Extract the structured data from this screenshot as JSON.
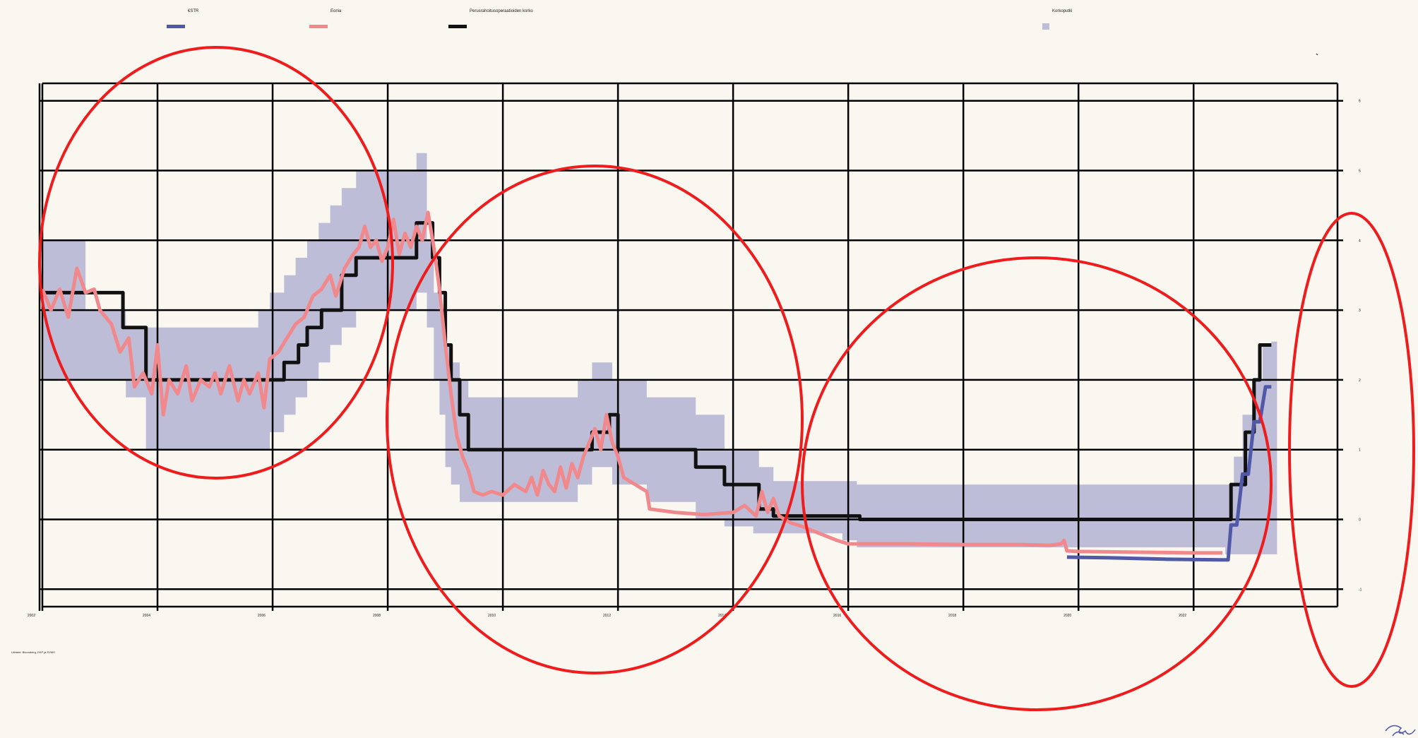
{
  "chart_data": {
    "type": "line",
    "title": "",
    "xlabel": "",
    "ylabel": "",
    "x_ticks": [
      "2002",
      "2004",
      "2006",
      "2008",
      "2010",
      "2012",
      "2014",
      "2016",
      "2018",
      "2020",
      "2022"
    ],
    "y_ticks": [
      "6",
      "5",
      "4",
      "3",
      "2",
      "1",
      "0",
      "-1"
    ],
    "xlim": [
      2002,
      2024.5
    ],
    "ylim": [
      -1.25,
      6.25
    ],
    "grid": true,
    "legend_position": "top",
    "legend": [
      {
        "label": "€STR",
        "color": "#5058a8",
        "kind": "line"
      },
      {
        "label": "Eonia",
        "color": "#f0888c",
        "kind": "line"
      },
      {
        "label": "Perusrahoitusoperaatioiden korko",
        "color": "#111111",
        "kind": "line"
      },
      {
        "label": "Korkoputki",
        "color": "#bebdd8",
        "kind": "band"
      }
    ],
    "source": "Lähteet: Bloomberg, EKP ja SVMS",
    "series": [
      {
        "name": "Korkoputki",
        "type": "band",
        "color": "#bebdd8",
        "x": [
          2002.0,
          2002.75,
          2003.45,
          2003.8,
          2005.75,
          2005.95,
          2006.2,
          2006.4,
          2006.6,
          2006.8,
          2007.0,
          2007.2,
          2007.45,
          2007.7,
          2008.5,
          2008.68,
          2008.8,
          2008.9,
          2009.0,
          2009.1,
          2009.25,
          2009.4,
          2011.2,
          2011.3,
          2011.55,
          2011.9,
          2012.5,
          2013.35,
          2013.85,
          2014.35,
          2014.45,
          2014.7,
          2015.9,
          2016.15,
          2022.55,
          2022.7,
          2022.85,
          2023.05,
          2023.2,
          2023.35
        ],
        "upper": [
          4.0,
          3.0,
          2.75,
          2.75,
          3.0,
          3.25,
          3.5,
          3.75,
          4.0,
          4.25,
          4.5,
          4.75,
          5.0,
          5.0,
          5.25,
          4.0,
          3.25,
          3.0,
          2.5,
          2.25,
          2.0,
          1.75,
          1.75,
          2.0,
          2.25,
          2.0,
          1.75,
          1.5,
          1.0,
          1.0,
          0.75,
          0.55,
          0.55,
          0.5,
          0.5,
          0.9,
          1.5,
          2.0,
          2.5,
          2.55
        ],
        "lower": [
          2.0,
          2.0,
          1.75,
          1.0,
          1.0,
          1.25,
          1.5,
          1.75,
          2.0,
          2.25,
          2.5,
          2.75,
          3.0,
          3.0,
          3.25,
          2.75,
          2.0,
          1.5,
          0.75,
          0.5,
          0.25,
          0.25,
          0.25,
          0.5,
          0.75,
          0.5,
          0.25,
          0.0,
          -0.1,
          -0.2,
          -0.2,
          -0.2,
          -0.3,
          -0.4,
          -0.5,
          -0.5,
          -0.5,
          -0.5,
          -0.5,
          -0.5
        ]
      },
      {
        "name": "Perusrahoitusoperaatioiden korko",
        "type": "step",
        "color": "#111111",
        "x": [
          2002.0,
          2002.95,
          2003.4,
          2003.8,
          2005.95,
          2006.2,
          2006.45,
          2006.6,
          2006.85,
          2007.2,
          2007.45,
          2008.5,
          2008.78,
          2008.9,
          2009.0,
          2009.1,
          2009.25,
          2009.4,
          2011.3,
          2011.55,
          2011.85,
          2012.0,
          2012.5,
          2013.35,
          2013.85,
          2014.45,
          2014.7,
          2015.9,
          2016.2,
          2022.55,
          2022.65,
          2022.75,
          2022.9,
          2023.05,
          2023.15,
          2023.25,
          2023.35
        ],
        "y": [
          3.25,
          3.25,
          2.75,
          2.0,
          2.0,
          2.25,
          2.5,
          2.75,
          3.0,
          3.5,
          3.75,
          4.25,
          3.75,
          3.25,
          2.5,
          2.0,
          1.5,
          1.0,
          1.0,
          1.25,
          1.5,
          1.0,
          1.0,
          0.75,
          0.5,
          0.15,
          0.05,
          0.05,
          0.0,
          0.0,
          0.5,
          0.5,
          1.25,
          2.0,
          2.5,
          2.5,
          2.5
        ]
      },
      {
        "name": "Eonia",
        "type": "line",
        "color": "#f0888c",
        "x": [
          2002.0,
          2002.15,
          2002.3,
          2002.45,
          2002.6,
          2002.75,
          2002.9,
          2003.0,
          2003.2,
          2003.35,
          2003.5,
          2003.6,
          2003.75,
          2003.9,
          2004.0,
          2004.1,
          2004.2,
          2004.35,
          2004.5,
          2004.6,
          2004.75,
          2004.9,
          2005.0,
          2005.1,
          2005.25,
          2005.4,
          2005.5,
          2005.6,
          2005.75,
          2005.85,
          2005.95,
          2006.1,
          2006.25,
          2006.4,
          2006.55,
          2006.7,
          2006.85,
          2007.0,
          2007.1,
          2007.25,
          2007.4,
          2007.5,
          2007.6,
          2007.7,
          2007.8,
          2007.9,
          2008.0,
          2008.1,
          2008.2,
          2008.3,
          2008.4,
          2008.5,
          2008.6,
          2008.7,
          2008.8,
          2008.9,
          2009.0,
          2009.1,
          2009.2,
          2009.3,
          2009.4,
          2009.5,
          2009.65,
          2009.8,
          2010.0,
          2010.2,
          2010.4,
          2010.5,
          2010.6,
          2010.7,
          2010.8,
          2010.9,
          2011.0,
          2011.1,
          2011.2,
          2011.3,
          2011.4,
          2011.5,
          2011.6,
          2011.7,
          2011.8,
          2011.9,
          2012.0,
          2012.1,
          2012.5,
          2012.55,
          2013.0,
          2013.5,
          2014.0,
          2014.2,
          2014.4,
          2014.5,
          2014.6,
          2014.7,
          2014.8,
          2014.9,
          2015.0,
          2015.2,
          2015.5,
          2015.8,
          2016.0,
          2016.15,
          2016.3,
          2017.0,
          2018.0,
          2019.0,
          2019.5,
          2019.7,
          2019.75,
          2019.8,
          2020.0,
          2021.0,
          2022.0,
          2022.5
        ],
        "y": [
          3.3,
          3.0,
          3.3,
          2.9,
          3.6,
          3.25,
          3.3,
          3.0,
          2.8,
          2.4,
          2.6,
          1.9,
          2.1,
          1.8,
          2.5,
          1.5,
          2.0,
          1.8,
          2.2,
          1.7,
          2.0,
          1.9,
          2.1,
          1.8,
          2.2,
          1.7,
          2.0,
          1.8,
          2.1,
          1.6,
          2.3,
          2.4,
          2.6,
          2.8,
          2.9,
          3.2,
          3.3,
          3.5,
          3.2,
          3.6,
          3.8,
          3.9,
          4.2,
          3.9,
          4.0,
          3.7,
          3.9,
          4.3,
          3.8,
          4.1,
          3.9,
          4.2,
          4.0,
          4.4,
          3.9,
          3.3,
          2.5,
          1.8,
          1.2,
          0.9,
          0.7,
          0.4,
          0.35,
          0.4,
          0.35,
          0.5,
          0.4,
          0.6,
          0.35,
          0.7,
          0.5,
          0.4,
          0.75,
          0.45,
          0.8,
          0.6,
          0.9,
          1.1,
          1.3,
          1.0,
          1.5,
          1.1,
          0.9,
          0.6,
          0.4,
          0.15,
          0.1,
          0.07,
          0.1,
          0.2,
          0.05,
          0.4,
          0.1,
          0.3,
          0.05,
          0.0,
          -0.05,
          -0.1,
          -0.2,
          -0.3,
          -0.35,
          -0.35,
          -0.35,
          -0.35,
          -0.36,
          -0.36,
          -0.37,
          -0.35,
          -0.3,
          -0.45,
          -0.46,
          -0.47,
          -0.48,
          -0.48
        ]
      },
      {
        "name": "€STR",
        "type": "line",
        "color": "#5058a8",
        "x": [
          2019.8,
          2020.5,
          2021.5,
          2022.5,
          2022.6,
          2022.65,
          2022.75,
          2022.85,
          2022.95,
          2023.05,
          2023.15,
          2023.25,
          2023.35
        ],
        "y": [
          -0.54,
          -0.55,
          -0.57,
          -0.58,
          -0.58,
          -0.08,
          -0.08,
          0.65,
          0.65,
          1.4,
          1.4,
          1.9,
          1.9
        ]
      }
    ]
  }
}
